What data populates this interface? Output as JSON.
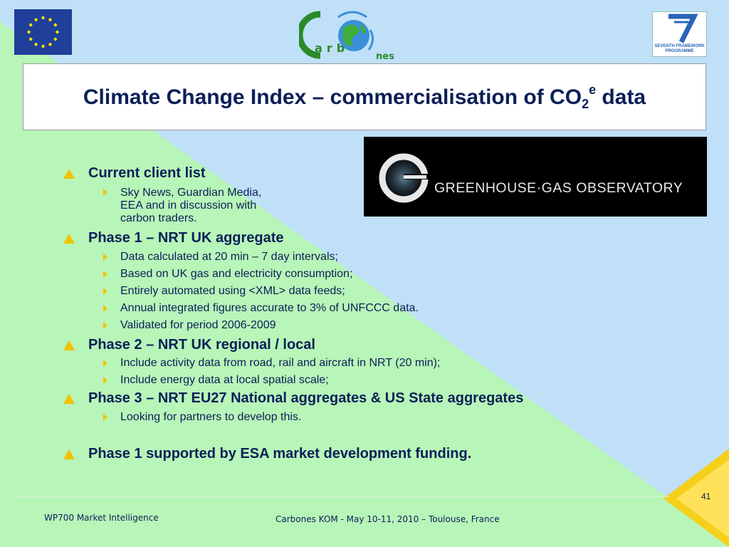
{
  "title": {
    "main": "Climate Change Index – commercialisation of CO",
    "sub": "2",
    "sup": "e",
    "tail": " data"
  },
  "banner": {
    "text": "GREENHOUSE·GAS OBSERVATORY"
  },
  "logos": {
    "carbones_text": "arb",
    "carbones_suffix": "nes",
    "fp7_line1": "SEVENTH FRAMEWORK",
    "fp7_line2": "PROGRAMME"
  },
  "sections": [
    {
      "heading": "Current client list",
      "items": [
        "Sky News, Guardian Media,",
        "EEA and in discussion with",
        "carbon traders."
      ]
    },
    {
      "heading": "Phase 1 – NRT UK aggregate",
      "items": [
        "Data calculated at 20 min – 7 day intervals;",
        "Based on UK gas and electricity consumption;",
        "Entirely automated using <XML> data feeds;",
        "Annual integrated figures accurate to 3% of UNFCCC data.",
        "Validated for period 2006-2009"
      ]
    },
    {
      "heading": "Phase 2 – NRT UK regional / local",
      "items": [
        "Include activity data from road, rail and aircraft in NRT (20 min);",
        "Include energy data at local spatial scale;"
      ]
    },
    {
      "heading": "Phase 3 – NRT EU27 National aggregates & US State aggregates",
      "items": [
        "Looking for partners to develop this."
      ]
    },
    {
      "heading": "Phase 1 supported by ESA market development funding.",
      "items": []
    }
  ],
  "footer": {
    "left": "WP700 Market Intelligence",
    "center": "Carbones KOM  - May 10-11, 2010 – Toulouse, France",
    "page": "41"
  },
  "colors": {
    "text": "#0b1f58",
    "green_bg": "#b8f5b8",
    "blue_bg": "#bfe0f7",
    "bullet": "#f2c200"
  }
}
